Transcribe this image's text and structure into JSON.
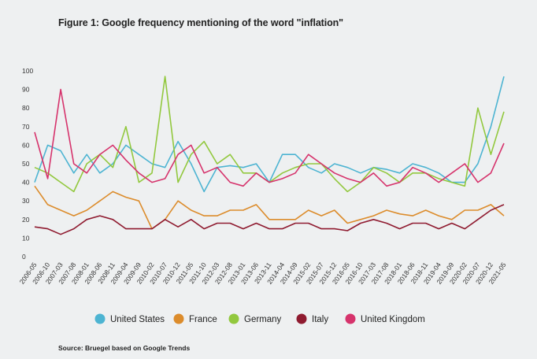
{
  "title": "Figure 1: Google frequency mentioning of the word \"inflation\"",
  "source": "Source: Bruegel based on Google Trends",
  "chart_data": {
    "type": "line",
    "title": "Figure 1: Google frequency mentioning of the word \"inflation\"",
    "xlabel": "",
    "ylabel": "",
    "ylim": [
      0,
      100
    ],
    "yticks": [
      "0",
      "10",
      "20",
      "30",
      "40",
      "50",
      "60",
      "70",
      "80",
      "90",
      "100"
    ],
    "grid": false,
    "legend_position": "bottom",
    "x_tick_labels": [
      "2006-05",
      "2006-10",
      "2007-03",
      "2007-08",
      "2008-01",
      "2008-06",
      "2008-11",
      "2009-04",
      "2009-09",
      "2010-02",
      "2010-07",
      "2010-12",
      "2011-05",
      "2011-10",
      "2012-03",
      "2012-08",
      "2013-01",
      "2013-06",
      "2013-11",
      "2014-04",
      "2014-09",
      "2015-02",
      "2015-07",
      "2015-12",
      "2016-05",
      "2016-10",
      "2017-03",
      "2017-08",
      "2018-01",
      "2018-06",
      "2018-11",
      "2019-04",
      "2019-09",
      "2020-02",
      "2020-07",
      "2020-12",
      "2021-05"
    ],
    "x_start": "2006-05",
    "months_per_point": 5,
    "series": [
      {
        "name": "United States",
        "color": "#4db4d2",
        "values": [
          40,
          60,
          57,
          45,
          55,
          45,
          50,
          60,
          55,
          50,
          48,
          62,
          50,
          35,
          48,
          49,
          48,
          50,
          40,
          55,
          55,
          48,
          45,
          50,
          48,
          45,
          48,
          47,
          45,
          50,
          48,
          45,
          40,
          40,
          50,
          70,
          97
        ]
      },
      {
        "name": "France",
        "color": "#dc8c2c",
        "values": [
          38,
          28,
          25,
          22,
          25,
          30,
          35,
          32,
          30,
          15,
          20,
          30,
          25,
          22,
          22,
          25,
          25,
          28,
          20,
          20,
          20,
          25,
          22,
          25,
          18,
          20,
          22,
          25,
          23,
          22,
          25,
          22,
          20,
          25,
          25,
          28,
          22
        ]
      },
      {
        "name": "Germany",
        "color": "#92c83e",
        "values": [
          48,
          45,
          40,
          35,
          50,
          55,
          48,
          70,
          40,
          45,
          97,
          40,
          55,
          62,
          50,
          55,
          45,
          45,
          40,
          45,
          48,
          50,
          50,
          42,
          35,
          40,
          48,
          45,
          40,
          45,
          45,
          42,
          40,
          38,
          80,
          55,
          78
        ]
      },
      {
        "name": "Italy",
        "color": "#8f1b30",
        "values": [
          16,
          15,
          12,
          15,
          20,
          22,
          20,
          15,
          15,
          15,
          20,
          16,
          20,
          15,
          18,
          18,
          15,
          18,
          15,
          15,
          18,
          18,
          15,
          15,
          14,
          18,
          20,
          18,
          15,
          18,
          18,
          15,
          18,
          15,
          20,
          25,
          28
        ]
      },
      {
        "name": "United Kingdom",
        "color": "#d6336c",
        "values": [
          67,
          42,
          90,
          50,
          45,
          55,
          60,
          52,
          45,
          40,
          42,
          55,
          60,
          45,
          48,
          40,
          38,
          45,
          40,
          42,
          45,
          55,
          50,
          45,
          42,
          40,
          45,
          38,
          40,
          48,
          45,
          40,
          45,
          50,
          40,
          45,
          61
        ]
      }
    ]
  }
}
